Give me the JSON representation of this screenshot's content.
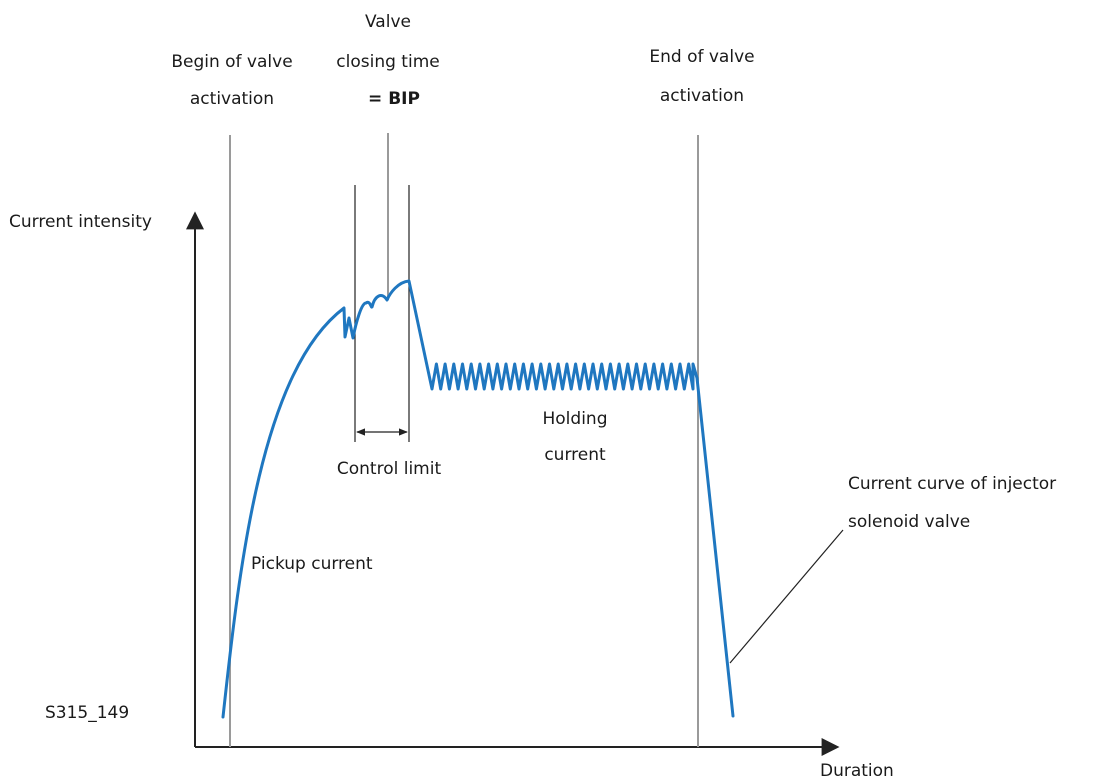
{
  "labels": {
    "begin_line1": "Begin of valve",
    "begin_line2": "activation",
    "valve_line1": "Valve",
    "valve_line2": "closing time",
    "bip": "= BIP",
    "end_line1": "End of valve",
    "end_line2": "activation",
    "y_axis": "Current intensity",
    "x_axis": "Duration",
    "control_limit": "Control limit",
    "holding_line1": "Holding",
    "holding_line2": "current",
    "pickup": "Pickup current",
    "curve_line1": "Current curve of injector",
    "curve_line2": "solenoid valve",
    "figure_id": "S315_149"
  },
  "colors": {
    "curve": "#1f77c0",
    "marker_grey": "#9a9a9a",
    "axis": "#222222"
  }
}
